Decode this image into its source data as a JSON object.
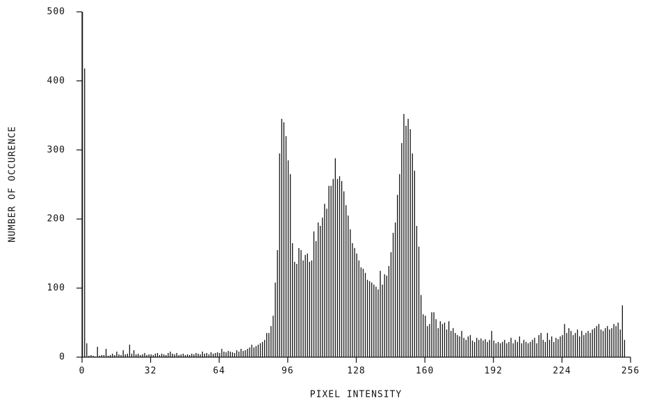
{
  "chart_data": {
    "type": "histogram",
    "x_label": "PIXEL INTENSITY",
    "y_label": "NUMBER OF OCCURENCE",
    "color": "#111111",
    "bins": [
      0,
      1,
      2,
      3,
      4,
      5,
      6,
      7,
      8,
      9,
      10,
      11,
      12,
      13,
      14,
      15,
      16,
      17,
      18,
      19,
      20,
      21,
      22,
      23,
      24,
      25,
      26,
      27,
      28,
      29,
      30,
      31,
      32,
      33,
      34,
      35,
      36,
      37,
      38,
      39,
      40,
      41,
      42,
      43,
      44,
      45,
      46,
      47,
      48,
      49,
      50,
      51,
      52,
      53,
      54,
      55,
      56,
      57,
      58,
      59,
      60,
      61,
      62,
      63,
      64,
      65,
      66,
      67,
      68,
      69,
      70,
      71,
      72,
      73,
      74,
      75,
      76,
      77,
      78,
      79,
      80,
      81,
      82,
      83,
      84,
      85,
      86,
      87,
      88,
      89,
      90,
      91,
      92,
      93,
      94,
      95,
      96,
      97,
      98,
      99,
      100,
      101,
      102,
      103,
      104,
      105,
      106,
      107,
      108,
      109,
      110,
      111,
      112,
      113,
      114,
      115,
      116,
      117,
      118,
      119,
      120,
      121,
      122,
      123,
      124,
      125,
      126,
      127,
      128,
      129,
      130,
      131,
      132,
      133,
      134,
      135,
      136,
      137,
      138,
      139,
      140,
      141,
      142,
      143,
      144,
      145,
      146,
      147,
      148,
      149,
      150,
      151,
      152,
      153,
      154,
      155,
      156,
      157,
      158,
      159,
      160,
      161,
      162,
      163,
      164,
      165,
      166,
      167,
      168,
      169,
      170,
      171,
      172,
      173,
      174,
      175,
      176,
      177,
      178,
      179,
      180,
      181,
      182,
      183,
      184,
      185,
      186,
      187,
      188,
      189,
      190,
      191,
      192,
      193,
      194,
      195,
      196,
      197,
      198,
      199,
      200,
      201,
      202,
      203,
      204,
      205,
      206,
      207,
      208,
      209,
      210,
      211,
      212,
      213,
      214,
      215,
      216,
      217,
      218,
      219,
      220,
      221,
      222,
      223,
      224,
      225,
      226,
      227,
      228,
      229,
      230,
      231,
      232,
      233,
      234,
      235,
      236,
      237,
      238,
      239,
      240,
      241,
      242,
      243,
      244,
      245,
      246,
      247,
      248,
      249,
      250,
      251,
      252,
      253,
      254,
      255,
      256
    ],
    "values": [
      500,
      418,
      20,
      2,
      3,
      2,
      1,
      15,
      2,
      3,
      3,
      12,
      2,
      3,
      5,
      3,
      8,
      4,
      3,
      10,
      4,
      5,
      18,
      5,
      10,
      4,
      5,
      3,
      4,
      6,
      3,
      4,
      4,
      3,
      5,
      6,
      3,
      5,
      4,
      3,
      6,
      8,
      5,
      4,
      6,
      3,
      4,
      5,
      3,
      4,
      3,
      5,
      4,
      6,
      5,
      4,
      8,
      5,
      6,
      4,
      7,
      5,
      6,
      7,
      6,
      12,
      8,
      7,
      9,
      8,
      7,
      6,
      10,
      8,
      12,
      9,
      10,
      12,
      14,
      18,
      14,
      16,
      18,
      20,
      22,
      25,
      35,
      35,
      45,
      60,
      108,
      155,
      295,
      345,
      340,
      320,
      285,
      265,
      165,
      138,
      135,
      158,
      155,
      140,
      148,
      150,
      138,
      140,
      182,
      168,
      195,
      190,
      202,
      222,
      215,
      248,
      248,
      258,
      288,
      258,
      262,
      255,
      240,
      220,
      205,
      185,
      165,
      158,
      150,
      140,
      130,
      128,
      122,
      112,
      110,
      108,
      105,
      102,
      98,
      125,
      105,
      120,
      118,
      132,
      152,
      180,
      195,
      235,
      265,
      310,
      352,
      335,
      345,
      330,
      295,
      270,
      190,
      160,
      90,
      62,
      60,
      45,
      48,
      65,
      65,
      55,
      42,
      52,
      48,
      50,
      40,
      52,
      38,
      42,
      35,
      32,
      30,
      38,
      28,
      25,
      30,
      32,
      24,
      22,
      28,
      25,
      27,
      24,
      26,
      22,
      25,
      38,
      24,
      20,
      22,
      20,
      22,
      25,
      20,
      22,
      28,
      20,
      25,
      22,
      30,
      20,
      25,
      22,
      20,
      22,
      25,
      28,
      20,
      32,
      35,
      25,
      22,
      35,
      25,
      30,
      22,
      28,
      26,
      30,
      32,
      48,
      35,
      42,
      38,
      32,
      35,
      40,
      30,
      38,
      32,
      35,
      38,
      35,
      40,
      42,
      45,
      48,
      40,
      38,
      42,
      45,
      40,
      42,
      48,
      45,
      50,
      40,
      75,
      25,
      0,
      0
    ],
    "xlim": [
      0,
      256
    ],
    "xticks": [
      0,
      32,
      64,
      96,
      128,
      160,
      192,
      224,
      256
    ],
    "ylim": [
      0,
      500
    ],
    "yticks": [
      0,
      100,
      200,
      300,
      400,
      500
    ],
    "grid": false
  }
}
